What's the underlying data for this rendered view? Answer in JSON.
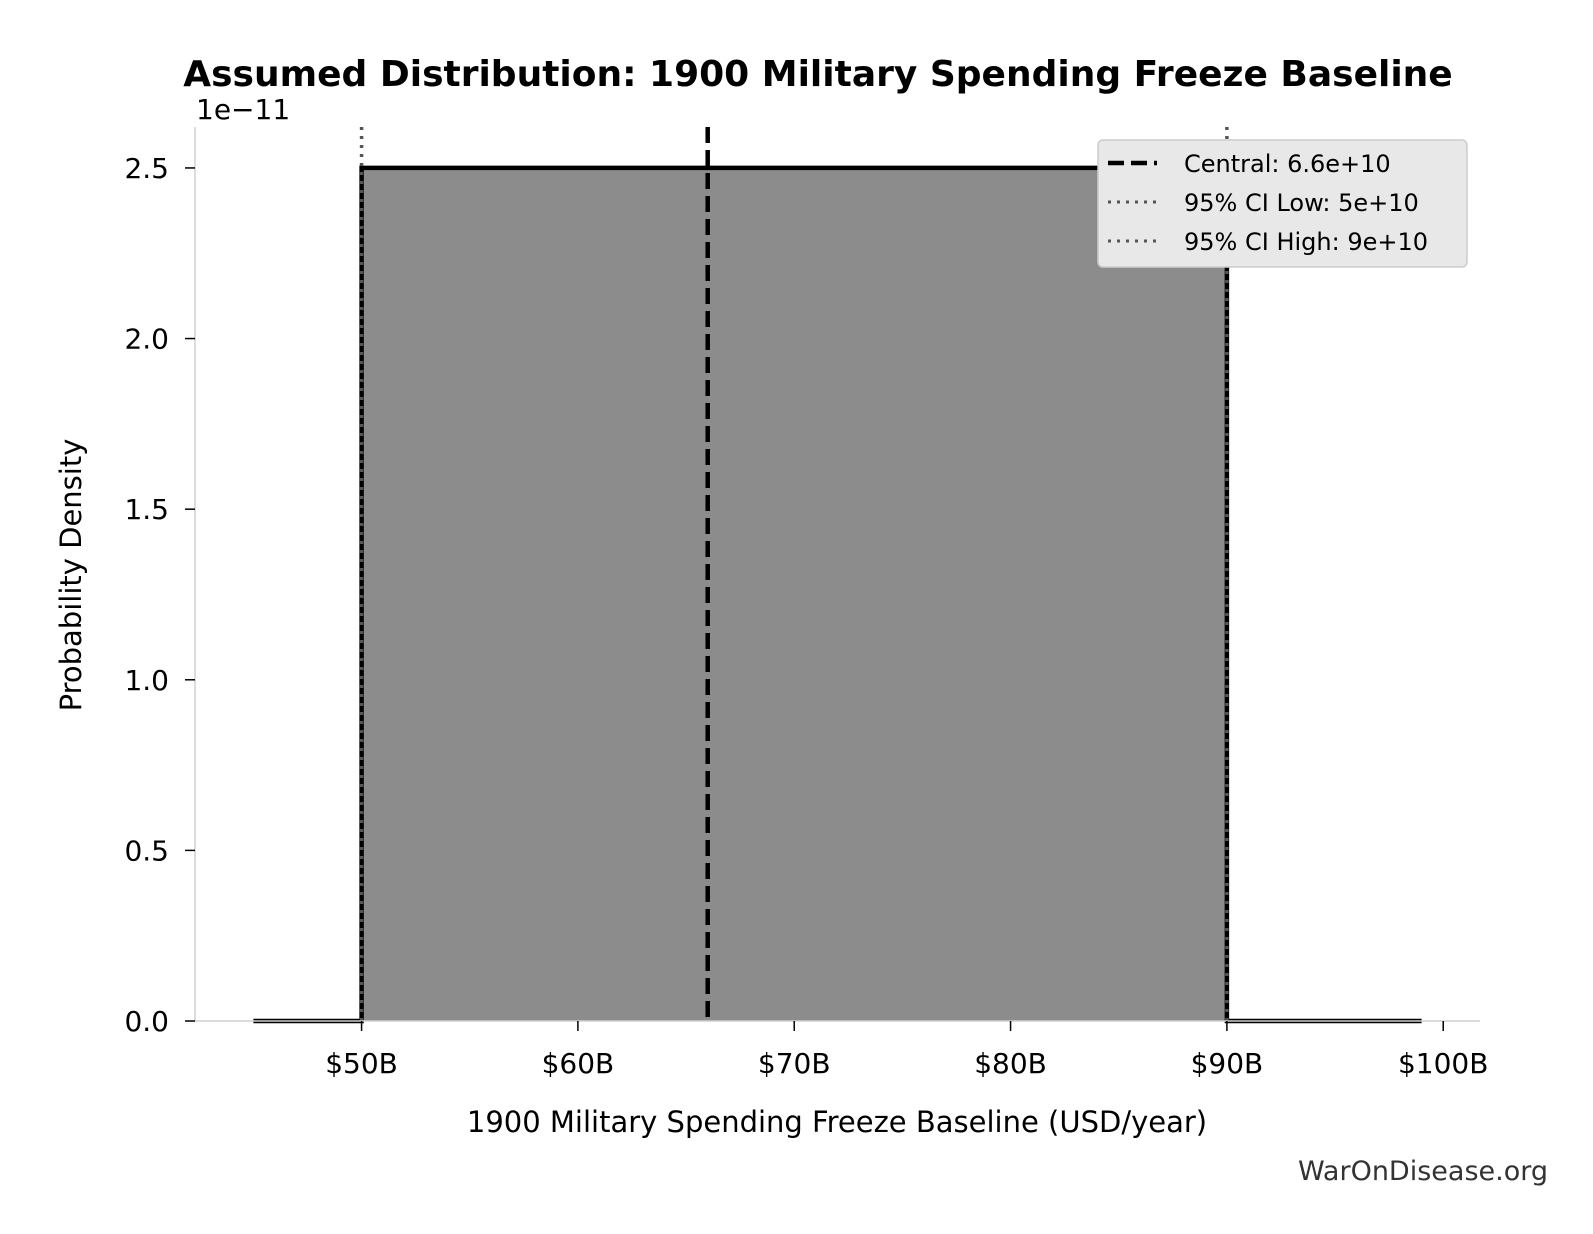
{
  "chart_data": {
    "type": "area",
    "title": "Assumed Distribution: 1900 Military Spending Freeze Baseline",
    "xlabel": "1900 Military Spending Freeze Baseline (USD/year)",
    "ylabel": "Probability Density",
    "y_offset_label": "1e−11",
    "xlim": [
      42.3,
      101.7
    ],
    "ylim": [
      0,
      2.62
    ],
    "x_ticks": [
      {
        "value": 50,
        "label": "$50B"
      },
      {
        "value": 60,
        "label": "$60B"
      },
      {
        "value": 70,
        "label": "$70B"
      },
      {
        "value": 80,
        "label": "$80B"
      },
      {
        "value": 90,
        "label": "$90B"
      },
      {
        "value": 100,
        "label": "$100B"
      }
    ],
    "y_ticks": [
      {
        "value": 0.0,
        "label": "0.0"
      },
      {
        "value": 0.5,
        "label": "0.5"
      },
      {
        "value": 1.0,
        "label": "1.0"
      },
      {
        "value": 1.5,
        "label": "1.5"
      },
      {
        "value": 2.0,
        "label": "2.0"
      },
      {
        "value": 2.5,
        "label": "2.5"
      }
    ],
    "series": [
      {
        "x": [
          45,
          50,
          50,
          90,
          90,
          99
        ],
        "y": [
          0,
          0,
          2.5,
          2.5,
          0,
          0
        ]
      }
    ],
    "fill_color": "#8c8c8c",
    "line_color": "#000000",
    "reference_lines": [
      {
        "name": "Central: 6.6e+10",
        "x": 66,
        "style": "dashed",
        "color": "#000000"
      },
      {
        "name": "95% CI Low: 5e+10",
        "x": 50,
        "style": "dotted",
        "color": "#555555"
      },
      {
        "name": "95% CI High: 9e+10",
        "x": 90,
        "style": "dotted",
        "color": "#555555"
      }
    ],
    "legend_position": "top-right",
    "grid": false
  },
  "watermark": "WarOnDisease.org"
}
